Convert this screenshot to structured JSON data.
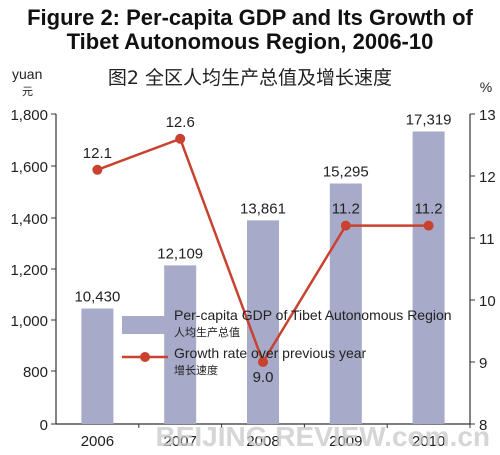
{
  "title_en_line1": "Figure 2: Per-capita GDP and Its Growth of",
  "title_en_line2": "Tibet Autonomous Region, 2006-10",
  "title_zh": "图2  全区人均生产总值及增长速度",
  "left_unit": "yuan",
  "left_unit_zh": "元",
  "right_unit": "%",
  "watermark": "BEIJING REVIEW.com.cn",
  "chart_data": {
    "type": "bar",
    "categories": [
      "2006",
      "2007",
      "2008",
      "2009",
      "2010"
    ],
    "ylim": [
      0,
      1800
    ],
    "yticks": [
      0,
      800,
      1000,
      1200,
      1400,
      1600,
      1800
    ],
    "ytick_labels": [
      "0",
      "800",
      "1,000",
      "1,200",
      "1,400",
      "1,600",
      "1,800"
    ],
    "y2lim": [
      8,
      13
    ],
    "y2ticks": [
      8,
      9,
      10,
      11,
      12,
      13
    ],
    "y2tick_labels": [
      "8",
      "9",
      "10",
      "11",
      "12",
      "13"
    ],
    "series": [
      {
        "name": "Per-capita GDP of Tibet Autonomous Region",
        "name_zh": "人均生产总值",
        "type": "bar",
        "axis": "left",
        "values": [
          10430,
          12109,
          13861,
          15295,
          17319
        ],
        "labels": [
          "10,430",
          "12,109",
          "13,861",
          "15,295",
          "17,319"
        ],
        "color": "#a7aac8"
      },
      {
        "name": "Growth rate over previous year",
        "name_zh": "增长速度",
        "type": "line",
        "axis": "right",
        "values": [
          12.1,
          12.6,
          9.0,
          11.2,
          11.2
        ],
        "labels": [
          "12.1",
          "12.6",
          "9.0",
          "11.2",
          "11.2"
        ],
        "color": "#c9412f"
      }
    ],
    "grid": false,
    "legend_position": "center-right"
  }
}
